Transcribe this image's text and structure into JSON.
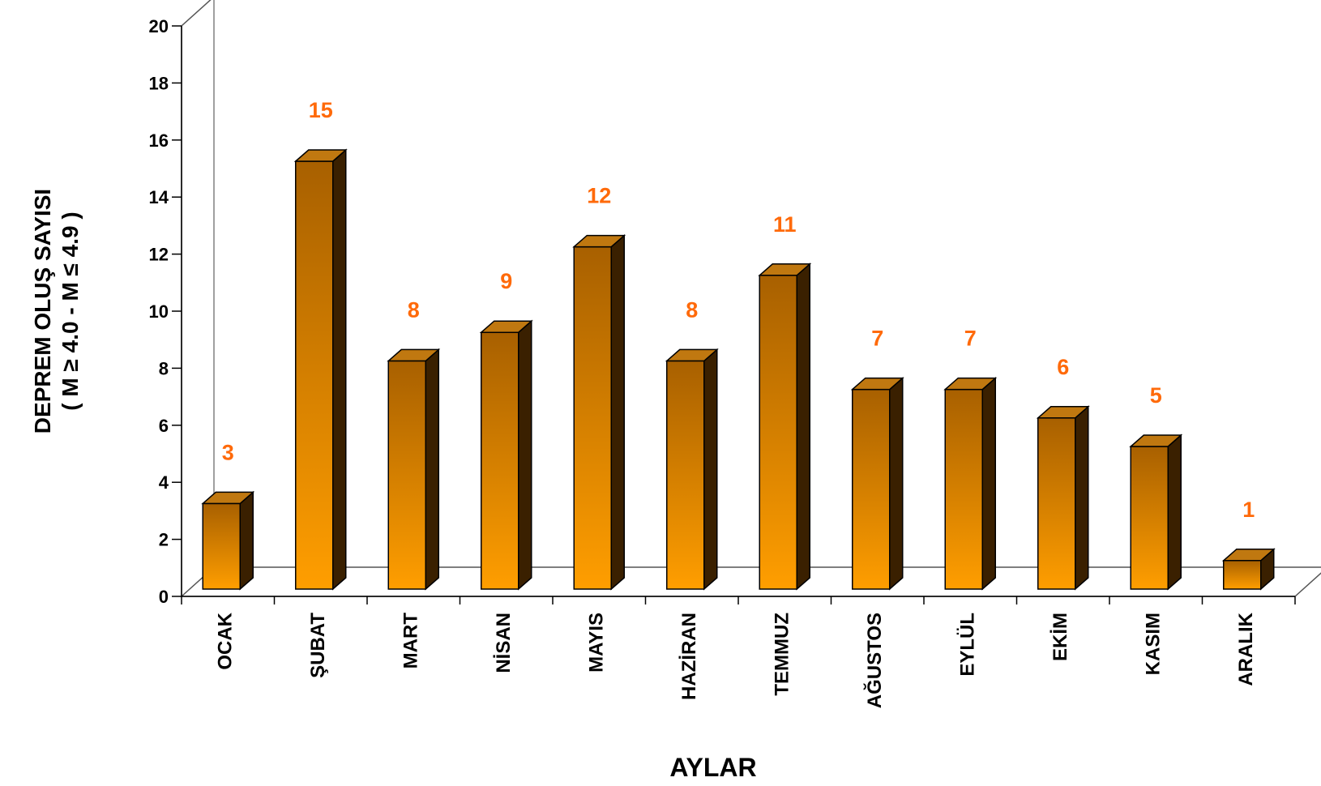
{
  "chart_data": {
    "type": "bar",
    "categories": [
      "OCAK",
      "ŞUBAT",
      "MART",
      "NİSAN",
      "MAYIS",
      "HAZİRAN",
      "TEMMUZ",
      "AĞUSTOS",
      "EYLÜL",
      "EKİM",
      "KASIM",
      "ARALIK"
    ],
    "values": [
      3,
      15,
      8,
      9,
      12,
      8,
      11,
      7,
      7,
      6,
      5,
      1
    ],
    "xlabel": "AYLAR",
    "ylabel": [
      "DEPREM OLUŞ SAYISI",
      "( M ≥ 4.0 -  M ≤ 4.9 )"
    ],
    "ylim": [
      0,
      20
    ],
    "yticks": [
      0,
      2,
      4,
      6,
      8,
      10,
      12,
      14,
      16,
      18,
      20
    ],
    "grid": false,
    "legend": "none",
    "style": "3d",
    "colors": {
      "bar_top": "#a86000",
      "bar_bottom": "#ff9e00",
      "bar_side": "#3a2000",
      "bar_cap": "#c07810",
      "data_label": "#ff6a0a"
    }
  }
}
